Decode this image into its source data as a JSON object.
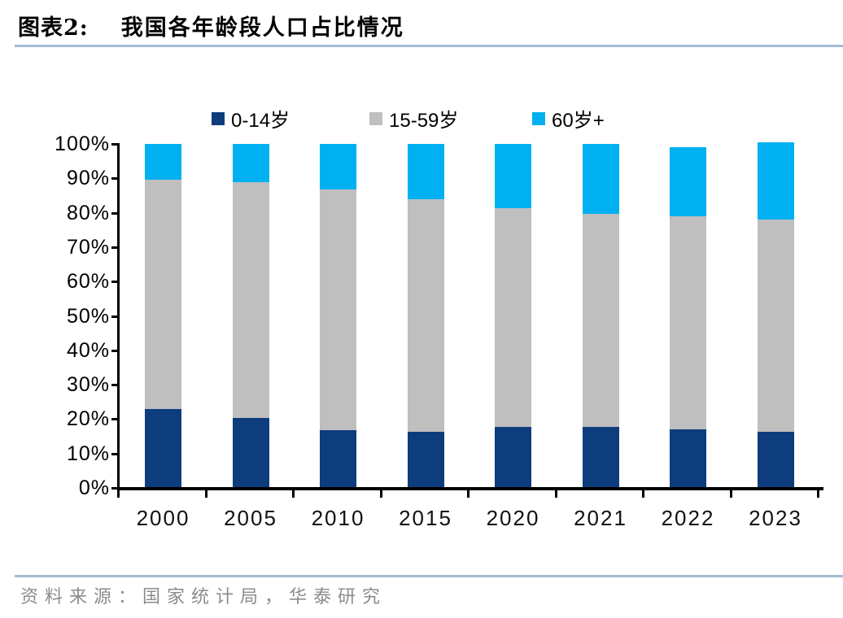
{
  "header": {
    "title_prefix": "图表2:",
    "title": "我国各年龄段人口占比情况"
  },
  "chart_data": {
    "type": "bar",
    "stacked": true,
    "title": "我国各年龄段人口占比情况",
    "categories": [
      "2000",
      "2005",
      "2010",
      "2015",
      "2020",
      "2021",
      "2022",
      "2023"
    ],
    "series": [
      {
        "name": "0-14岁",
        "color": "#0d3d7d",
        "values": [
          22.9,
          20.3,
          16.8,
          16.3,
          17.8,
          17.8,
          17.0,
          16.3
        ]
      },
      {
        "name": "15-59岁",
        "color": "#bfbfbf",
        "values": [
          66.8,
          68.7,
          69.9,
          67.6,
          63.5,
          61.8,
          61.9,
          61.8
        ]
      },
      {
        "name": "60岁+",
        "color": "#00b0f0",
        "values": [
          10.3,
          11.0,
          13.3,
          16.1,
          18.7,
          20.4,
          20.2,
          22.4
        ]
      }
    ],
    "y_ticks": [
      "100%",
      "90%",
      "80%",
      "70%",
      "60%",
      "50%",
      "40%",
      "30%",
      "20%",
      "10%",
      "0%"
    ],
    "ylim": [
      0,
      100
    ],
    "xlabel": "",
    "ylabel": "",
    "grid": false,
    "legend_position": "top"
  },
  "footer": {
    "source": "资料来源：国家统计局，华泰研究"
  },
  "colors": {
    "title_underline": "#a3bcd4",
    "footer_line": "#a3bcd4",
    "source_text": "#8c8c8c",
    "axis": "#000000"
  }
}
